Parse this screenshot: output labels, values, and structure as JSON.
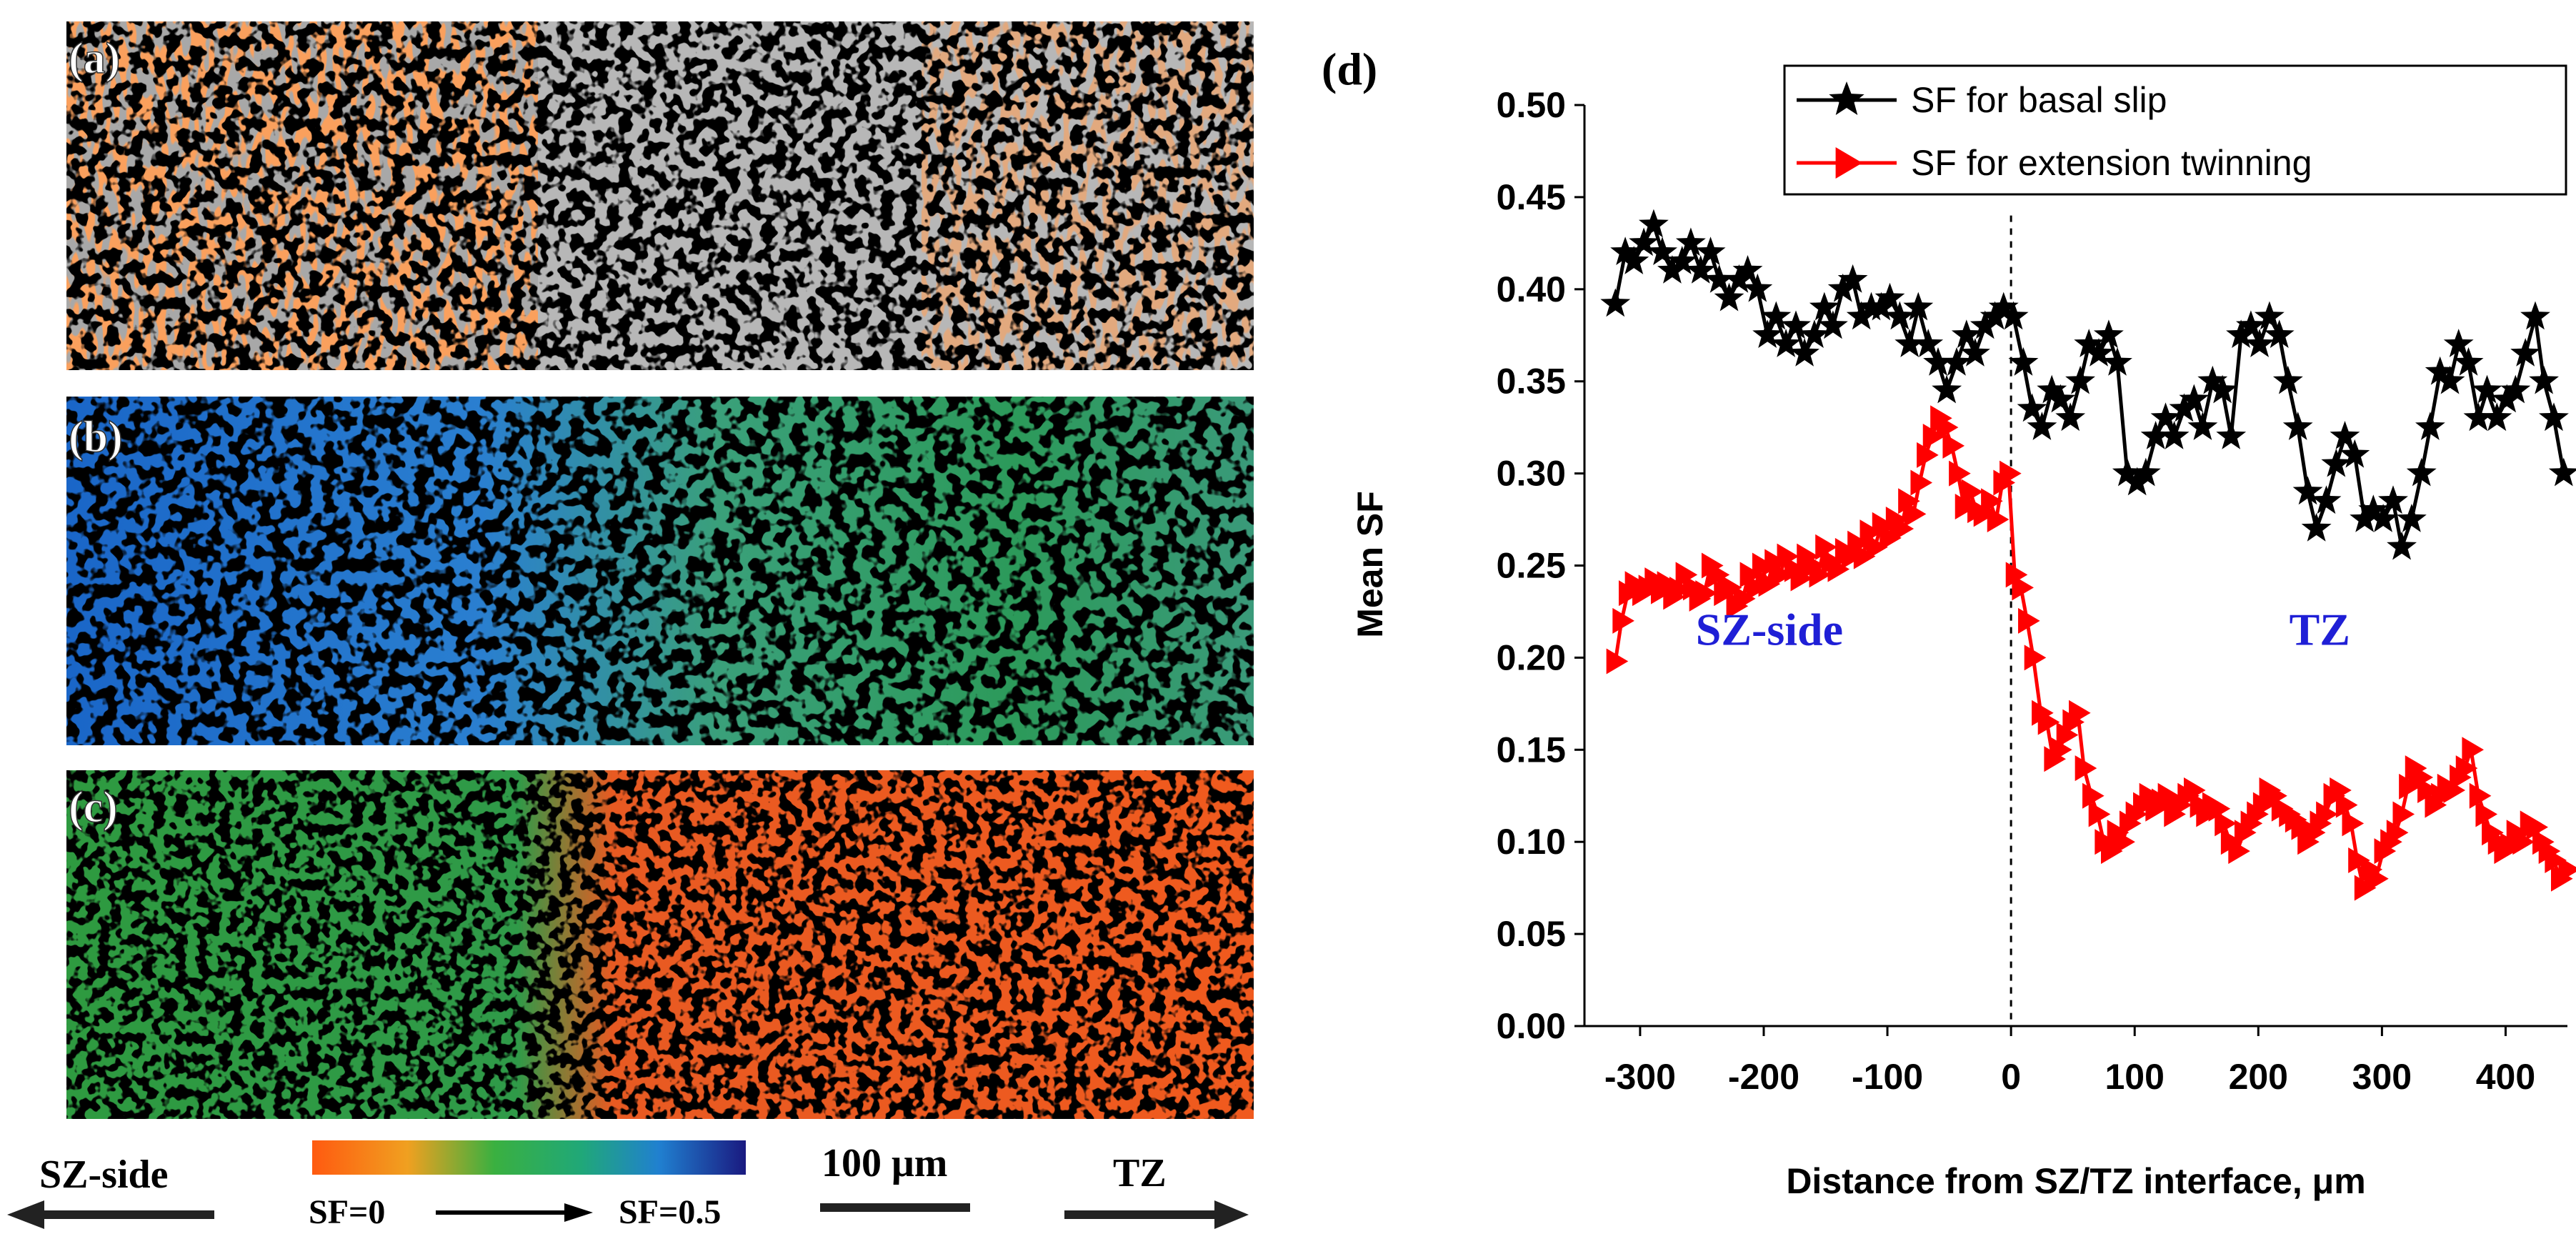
{
  "panels": {
    "a": {
      "label": "(a)"
    },
    "b": {
      "label": "(b)"
    },
    "c": {
      "label": "(c)"
    },
    "d": {
      "label": "(d)"
    }
  },
  "bottom_legend": {
    "left_region": "SZ-side",
    "right_region": "TZ",
    "scale_bar": "100 μm",
    "colorbar_min": "SF=0",
    "colorbar_max": "SF=0.5"
  },
  "colors": {
    "basal": "#000000",
    "twin": "#ff0000",
    "region_label": "#1f1fd6",
    "low_sf": "#ff5a1a",
    "mid_sf": "#2aa84a",
    "high_sf": "#1a2a8c"
  },
  "chart_data": {
    "type": "line",
    "title": "",
    "xlabel": "Distance from SZ/TZ interface, μm",
    "ylabel": "Mean SF",
    "xlim": [
      -345,
      450
    ],
    "ylim": [
      0,
      0.5
    ],
    "xticks": [
      "-300",
      "-200",
      "-100",
      "0",
      "100",
      "200",
      "300",
      "400"
    ],
    "yticks": [
      "0.00",
      "0.05",
      "0.10",
      "0.15",
      "0.20",
      "0.25",
      "0.30",
      "0.35",
      "0.40",
      "0.45",
      "0.50"
    ],
    "legend_position": "top-right",
    "vline_x": 0,
    "annotations": [
      {
        "text": "SZ-side",
        "x": -255,
        "y": 0.207
      },
      {
        "text": "TZ",
        "x": 225,
        "y": 0.207
      }
    ],
    "series": [
      {
        "name": "SF for basal slip",
        "marker": "star",
        "x": [
          -320,
          -312,
          -305,
          -297,
          -289,
          -282,
          -274,
          -266,
          -259,
          -251,
          -243,
          -236,
          -228,
          -220,
          -213,
          -205,
          -197,
          -190,
          -182,
          -174,
          -167,
          -159,
          -151,
          -144,
          -136,
          -128,
          -121,
          -113,
          -105,
          -98,
          -90,
          -82,
          -75,
          -67,
          -59,
          -52,
          -44,
          -36,
          -29,
          -21,
          -13,
          -6,
          2,
          10,
          17,
          25,
          33,
          40,
          48,
          56,
          63,
          71,
          79,
          86,
          94,
          102,
          109,
          117,
          125,
          132,
          140,
          148,
          155,
          163,
          171,
          178,
          186,
          194,
          201,
          209,
          217,
          224,
          232,
          240,
          247,
          255,
          263,
          270,
          278,
          286,
          293,
          301,
          309,
          316,
          324,
          332,
          339,
          347,
          355,
          362,
          370,
          378,
          385,
          393,
          401,
          408,
          416,
          424,
          431,
          439,
          447
        ],
        "values": [
          0.392,
          0.42,
          0.415,
          0.425,
          0.435,
          0.42,
          0.41,
          0.415,
          0.425,
          0.41,
          0.42,
          0.405,
          0.395,
          0.405,
          0.41,
          0.4,
          0.375,
          0.385,
          0.37,
          0.38,
          0.365,
          0.375,
          0.39,
          0.38,
          0.4,
          0.405,
          0.385,
          0.39,
          0.39,
          0.395,
          0.385,
          0.37,
          0.39,
          0.37,
          0.36,
          0.345,
          0.36,
          0.375,
          0.365,
          0.38,
          0.385,
          0.39,
          0.385,
          0.36,
          0.335,
          0.325,
          0.345,
          0.34,
          0.33,
          0.35,
          0.37,
          0.365,
          0.375,
          0.36,
          0.3,
          0.295,
          0.3,
          0.32,
          0.33,
          0.32,
          0.335,
          0.34,
          0.325,
          0.35,
          0.345,
          0.32,
          0.375,
          0.38,
          0.37,
          0.385,
          0.375,
          0.35,
          0.325,
          0.29,
          0.27,
          0.285,
          0.305,
          0.32,
          0.31,
          0.275,
          0.28,
          0.275,
          0.285,
          0.26,
          0.275,
          0.3,
          0.325,
          0.355,
          0.35,
          0.37,
          0.36,
          0.33,
          0.345,
          0.33,
          0.34,
          0.345,
          0.365,
          0.385,
          0.35,
          0.33,
          0.3
        ]
      },
      {
        "name": "SF for extension twinning",
        "marker": "triangle",
        "x": [
          -320,
          -315,
          -310,
          -305,
          -299,
          -294,
          -289,
          -284,
          -279,
          -274,
          -269,
          -264,
          -258,
          -253,
          -248,
          -243,
          -238,
          -233,
          -228,
          -223,
          -217,
          -212,
          -207,
          -202,
          -197,
          -192,
          -187,
          -182,
          -176,
          -171,
          -166,
          -161,
          -156,
          -151,
          -146,
          -141,
          -135,
          -130,
          -125,
          -120,
          -115,
          -110,
          -105,
          -99,
          -94,
          -89,
          -84,
          -79,
          -74,
          -69,
          -64,
          -58,
          -53,
          -48,
          -43,
          -38,
          -33,
          -28,
          -23,
          -17,
          -12,
          -7,
          -2,
          3,
          8,
          13,
          18,
          24,
          29,
          34,
          39,
          44,
          49,
          54,
          59,
          65,
          70,
          75,
          80,
          85,
          90,
          95,
          100,
          106,
          111,
          116,
          121,
          126,
          131,
          136,
          142,
          147,
          152,
          157,
          162,
          167,
          172,
          177,
          183,
          188,
          193,
          198,
          203,
          208,
          213,
          218,
          224,
          229,
          234,
          239,
          244,
          249,
          254,
          260,
          265,
          270,
          275,
          280,
          285,
          290,
          295,
          301,
          306,
          311,
          316,
          321,
          326,
          331,
          336,
          342,
          347,
          352,
          357,
          362,
          367,
          372,
          378,
          383,
          388,
          393,
          398,
          403,
          408,
          413,
          419,
          424,
          429,
          434,
          439,
          444,
          450
        ],
        "values": [
          0.198,
          0.22,
          0.235,
          0.24,
          0.235,
          0.238,
          0.242,
          0.236,
          0.24,
          0.233,
          0.237,
          0.245,
          0.238,
          0.232,
          0.235,
          0.25,
          0.245,
          0.235,
          0.238,
          0.228,
          0.232,
          0.245,
          0.238,
          0.25,
          0.24,
          0.252,
          0.245,
          0.255,
          0.248,
          0.243,
          0.255,
          0.25,
          0.245,
          0.26,
          0.252,
          0.248,
          0.258,
          0.255,
          0.262,
          0.255,
          0.268,
          0.26,
          0.272,
          0.265,
          0.275,
          0.27,
          0.285,
          0.278,
          0.295,
          0.31,
          0.32,
          0.33,
          0.325,
          0.315,
          0.3,
          0.282,
          0.29,
          0.28,
          0.278,
          0.285,
          0.275,
          0.295,
          0.3,
          0.245,
          0.238,
          0.22,
          0.2,
          0.17,
          0.165,
          0.145,
          0.15,
          0.158,
          0.165,
          0.17,
          0.14,
          0.125,
          0.115,
          0.1,
          0.095,
          0.105,
          0.1,
          0.11,
          0.115,
          0.12,
          0.125,
          0.118,
          0.122,
          0.125,
          0.115,
          0.12,
          0.125,
          0.128,
          0.12,
          0.115,
          0.12,
          0.118,
          0.11,
          0.1,
          0.095,
          0.105,
          0.11,
          0.115,
          0.12,
          0.128,
          0.125,
          0.118,
          0.115,
          0.112,
          0.108,
          0.1,
          0.105,
          0.11,
          0.115,
          0.125,
          0.128,
          0.12,
          0.11,
          0.09,
          0.075,
          0.085,
          0.08,
          0.095,
          0.1,
          0.105,
          0.115,
          0.13,
          0.14,
          0.135,
          0.128,
          0.12,
          0.125,
          0.13,
          0.128,
          0.135,
          0.14,
          0.15,
          0.125,
          0.115,
          0.105,
          0.1,
          0.095,
          0.098,
          0.105,
          0.1,
          0.11,
          0.108,
          0.1,
          0.095,
          0.09,
          0.08,
          0.085
        ]
      }
    ]
  }
}
